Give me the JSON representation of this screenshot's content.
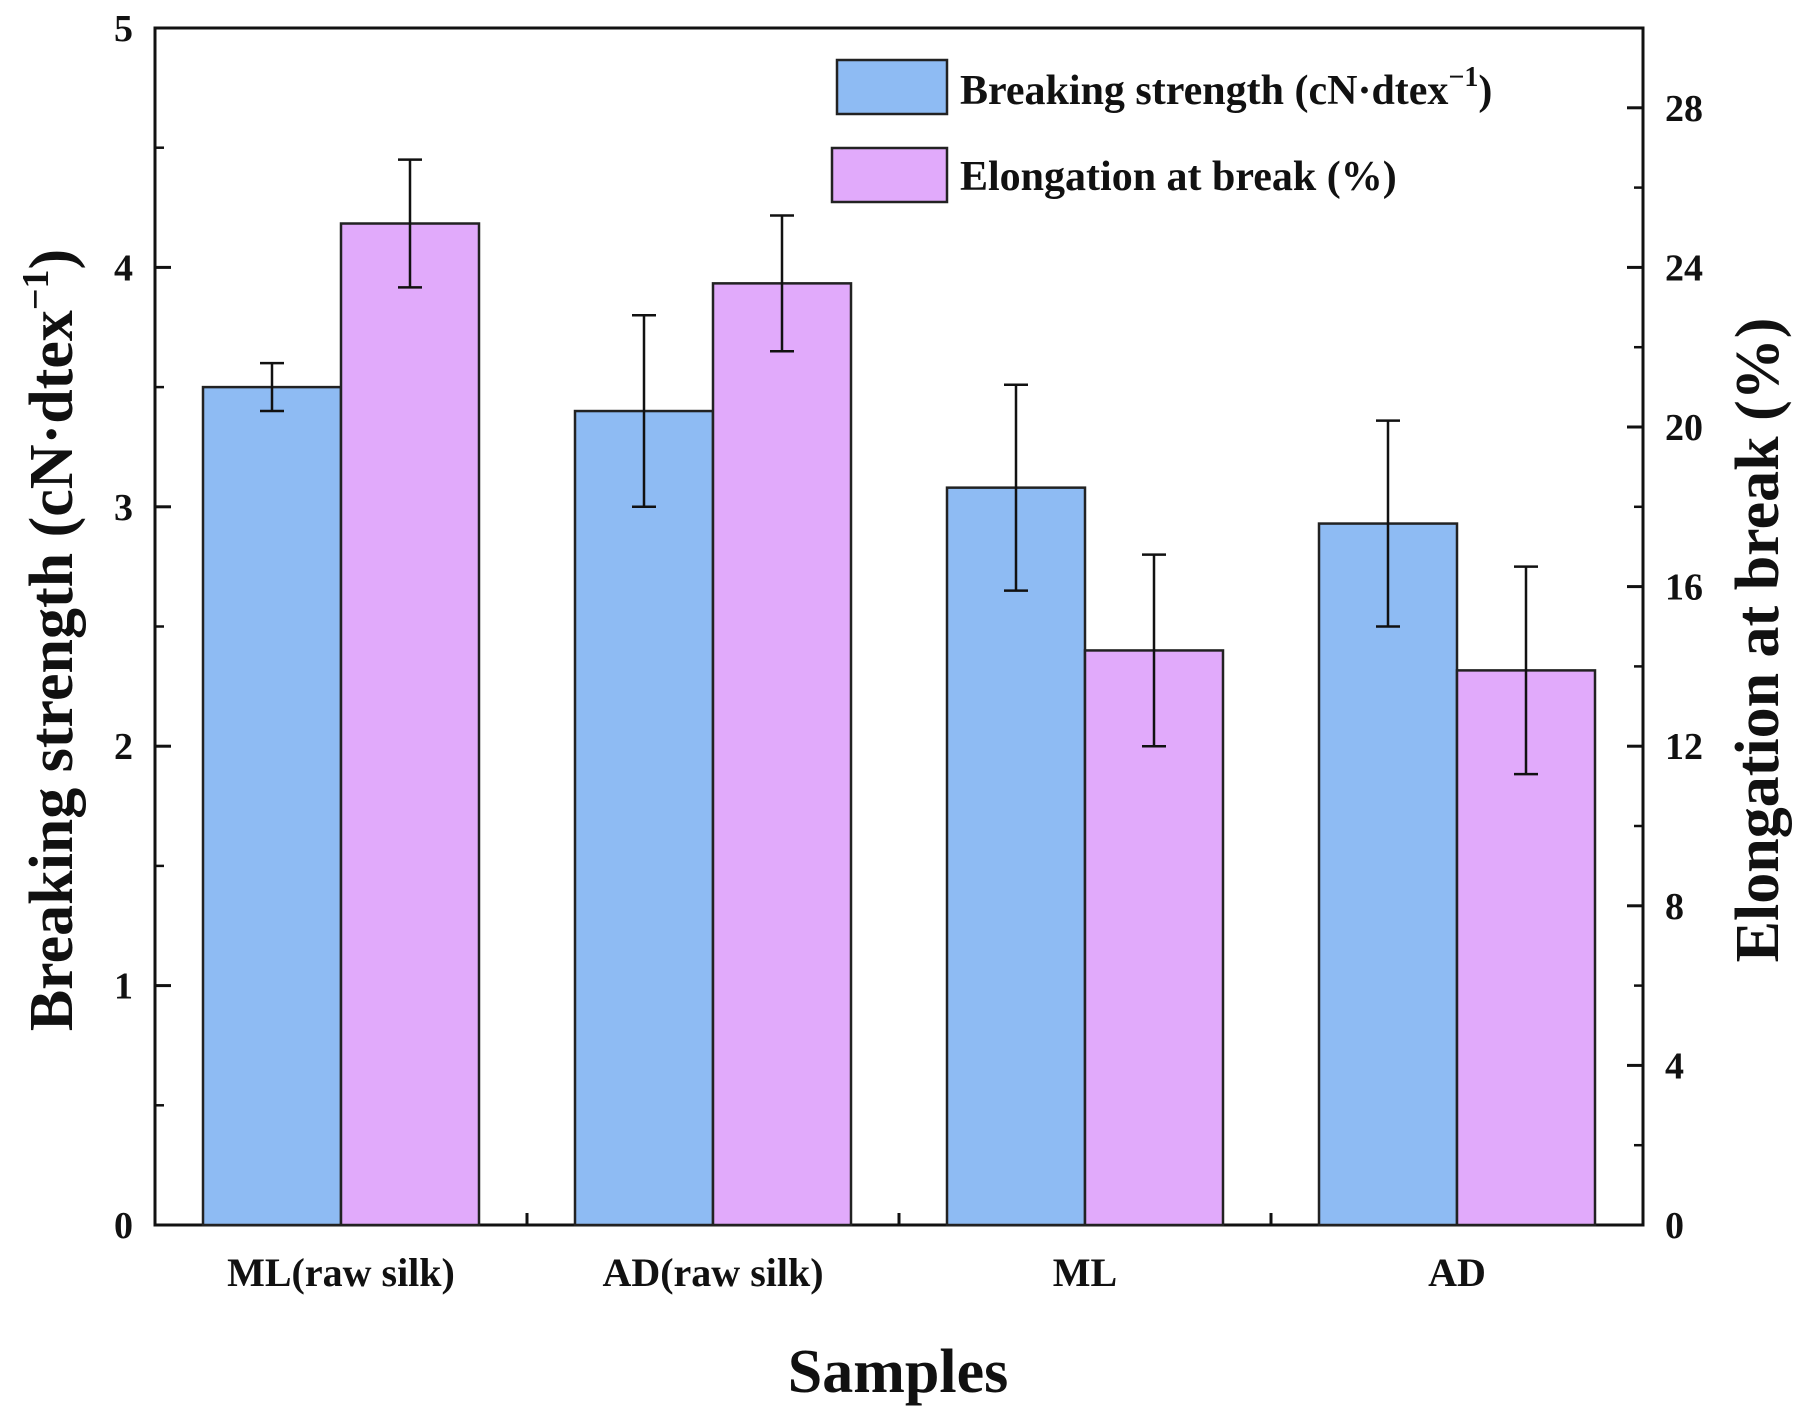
{
  "chart_data": {
    "type": "bar",
    "categories": [
      "ML(raw silk)",
      "AD(raw silk)",
      "ML",
      "AD"
    ],
    "xlabel": "Samples",
    "ylabel": "Breaking strength (cN·dtex",
    "ylabel_sup": "−1",
    "ylabel_end": ")",
    "y2label": "Elongation at break (%)",
    "ylim": [
      0,
      5
    ],
    "y2lim": [
      0,
      30
    ],
    "yticks": [
      "0",
      "1",
      "2",
      "3",
      "4",
      "5"
    ],
    "y2ticks": [
      "0",
      "4",
      "8",
      "12",
      "16",
      "20",
      "24",
      "28"
    ],
    "legend_position": "top-right",
    "series": [
      {
        "name": "Breaking strength (cN·dtex",
        "name_sup": "−1",
        "name_end": ")",
        "axis": "left",
        "color": "#8ebbf3",
        "values": [
          3.5,
          3.4,
          3.08,
          2.93
        ],
        "errors": [
          0.1,
          0.4,
          0.43,
          0.43
        ]
      },
      {
        "name": "Elongation at break (%)",
        "axis": "right",
        "color": "#e1aafb",
        "values": [
          25.1,
          23.6,
          14.4,
          13.9
        ],
        "errors": [
          1.6,
          1.7,
          2.4,
          2.6
        ]
      }
    ]
  }
}
